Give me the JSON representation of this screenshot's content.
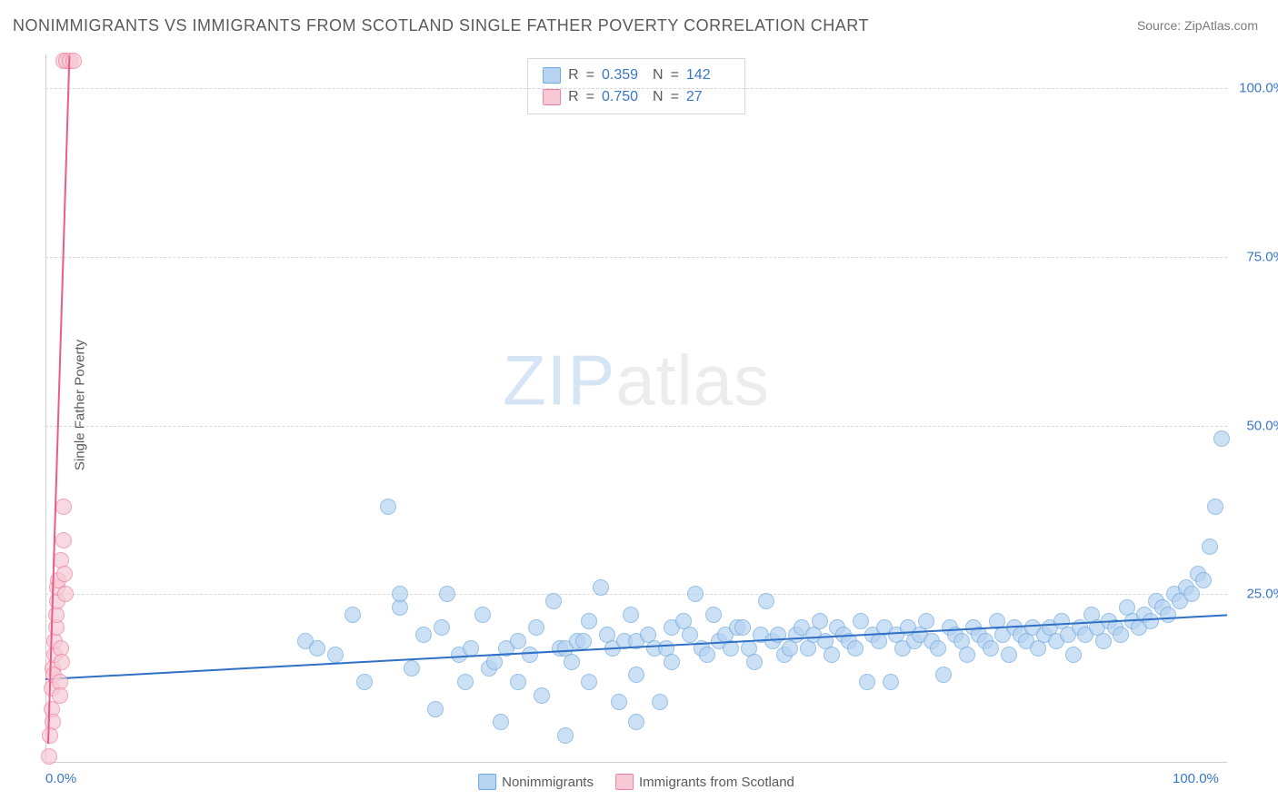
{
  "title": "NONIMMIGRANTS VS IMMIGRANTS FROM SCOTLAND SINGLE FATHER POVERTY CORRELATION CHART",
  "source_label": "Source:",
  "source_value": "ZipAtlas.com",
  "y_axis_label": "Single Father Poverty",
  "watermark": {
    "part1": "ZIP",
    "part2": "atlas"
  },
  "chart": {
    "type": "scatter",
    "background_color": "#ffffff",
    "grid_color": "#d8d8d8",
    "axis_color": "#cfcfcf",
    "xlim": [
      0,
      100
    ],
    "ylim": [
      0,
      105
    ],
    "yticks": [
      {
        "value": 25,
        "label": "25.0%"
      },
      {
        "value": 50,
        "label": "50.0%"
      },
      {
        "value": 75,
        "label": "75.0%"
      },
      {
        "value": 100,
        "label": "100.0%"
      }
    ],
    "xticks": [
      {
        "value": 0,
        "label": "0.0%",
        "align": "left"
      },
      {
        "value": 100,
        "label": "100.0%",
        "align": "right"
      }
    ],
    "marker_radius": 9,
    "marker_stroke_width": 1.5,
    "trend_line_width": 2.5,
    "series": [
      {
        "id": "nonimmigrants",
        "label": "Nonimmigrants",
        "fill_color": "#b6d3f0",
        "stroke_color": "#6ea8df",
        "fill_opacity": 0.7,
        "trend_color": "#2f6fc4",
        "trend": {
          "x1": 0,
          "y1": 12.5,
          "x2": 100,
          "y2": 22.0
        },
        "stats": {
          "R": "0.359",
          "N": "142"
        },
        "points": [
          [
            22,
            18
          ],
          [
            23,
            17
          ],
          [
            24.5,
            16
          ],
          [
            26,
            22
          ],
          [
            27,
            12
          ],
          [
            29,
            38
          ],
          [
            30,
            23
          ],
          [
            30,
            25
          ],
          [
            31,
            14
          ],
          [
            32,
            19
          ],
          [
            33,
            8
          ],
          [
            33.5,
            20
          ],
          [
            34,
            25
          ],
          [
            35,
            16
          ],
          [
            35.5,
            12
          ],
          [
            36,
            17
          ],
          [
            37,
            22
          ],
          [
            37.5,
            14
          ],
          [
            38,
            15
          ],
          [
            38.5,
            6
          ],
          [
            39,
            17
          ],
          [
            40,
            18
          ],
          [
            40,
            12
          ],
          [
            41,
            16
          ],
          [
            41.5,
            20
          ],
          [
            42,
            10
          ],
          [
            43,
            24
          ],
          [
            43.5,
            17
          ],
          [
            44,
            17
          ],
          [
            44.5,
            15
          ],
          [
            45,
            18
          ],
          [
            45.5,
            18
          ],
          [
            46,
            21
          ],
          [
            46,
            12
          ],
          [
            47,
            26
          ],
          [
            47.5,
            19
          ],
          [
            48,
            17
          ],
          [
            48.5,
            9
          ],
          [
            49,
            18
          ],
          [
            49.5,
            22
          ],
          [
            50,
            18
          ],
          [
            50,
            13
          ],
          [
            51,
            19
          ],
          [
            51.5,
            17
          ],
          [
            52,
            9
          ],
          [
            52.5,
            17
          ],
          [
            53,
            20
          ],
          [
            53,
            15
          ],
          [
            54,
            21
          ],
          [
            54.5,
            19
          ],
          [
            55,
            25
          ],
          [
            55.5,
            17
          ],
          [
            56,
            16
          ],
          [
            56.5,
            22
          ],
          [
            57,
            18
          ],
          [
            57.5,
            19
          ],
          [
            58,
            17
          ],
          [
            58.5,
            20
          ],
          [
            59,
            20
          ],
          [
            59.5,
            17
          ],
          [
            60,
            15
          ],
          [
            60.5,
            19
          ],
          [
            61,
            24
          ],
          [
            61.5,
            18
          ],
          [
            62,
            19
          ],
          [
            62.5,
            16
          ],
          [
            63,
            17
          ],
          [
            63.5,
            19
          ],
          [
            64,
            20
          ],
          [
            64.5,
            17
          ],
          [
            65,
            19
          ],
          [
            65.5,
            21
          ],
          [
            66,
            18
          ],
          [
            66.5,
            16
          ],
          [
            67,
            20
          ],
          [
            67.5,
            19
          ],
          [
            68,
            18
          ],
          [
            68.5,
            17
          ],
          [
            69,
            21
          ],
          [
            69.5,
            12
          ],
          [
            70,
            19
          ],
          [
            70.5,
            18
          ],
          [
            71,
            20
          ],
          [
            71.5,
            12
          ],
          [
            72,
            19
          ],
          [
            72.5,
            17
          ],
          [
            73,
            20
          ],
          [
            73.5,
            18
          ],
          [
            74,
            19
          ],
          [
            74.5,
            21
          ],
          [
            75,
            18
          ],
          [
            75.5,
            17
          ],
          [
            76,
            13
          ],
          [
            76.5,
            20
          ],
          [
            77,
            19
          ],
          [
            77.5,
            18
          ],
          [
            78,
            16
          ],
          [
            78.5,
            20
          ],
          [
            79,
            19
          ],
          [
            79.5,
            18
          ],
          [
            80,
            17
          ],
          [
            80.5,
            21
          ],
          [
            81,
            19
          ],
          [
            81.5,
            16
          ],
          [
            82,
            20
          ],
          [
            82.5,
            19
          ],
          [
            83,
            18
          ],
          [
            83.5,
            20
          ],
          [
            84,
            17
          ],
          [
            84.5,
            19
          ],
          [
            85,
            20
          ],
          [
            85.5,
            18
          ],
          [
            86,
            21
          ],
          [
            86.5,
            19
          ],
          [
            87,
            16
          ],
          [
            87.5,
            20
          ],
          [
            88,
            19
          ],
          [
            88.5,
            22
          ],
          [
            89,
            20
          ],
          [
            89.5,
            18
          ],
          [
            90,
            21
          ],
          [
            90.5,
            20
          ],
          [
            91,
            19
          ],
          [
            91.5,
            23
          ],
          [
            92,
            21
          ],
          [
            92.5,
            20
          ],
          [
            93,
            22
          ],
          [
            93.5,
            21
          ],
          [
            94,
            24
          ],
          [
            94.5,
            23
          ],
          [
            95,
            22
          ],
          [
            95.5,
            25
          ],
          [
            96,
            24
          ],
          [
            96.5,
            26
          ],
          [
            97,
            25
          ],
          [
            97.5,
            28
          ],
          [
            98,
            27
          ],
          [
            98.5,
            32
          ],
          [
            99,
            38
          ],
          [
            99.5,
            48
          ],
          [
            44,
            4
          ],
          [
            50,
            6
          ]
        ]
      },
      {
        "id": "immigrants",
        "label": "Immigrants from Scotland",
        "fill_color": "#f7c9d5",
        "stroke_color": "#ed7e9c",
        "fill_opacity": 0.7,
        "trend_color": "#ed5a87",
        "trend": {
          "x1": 0.2,
          "y1": 3,
          "x2": 2.0,
          "y2": 105
        },
        "stats": {
          "R": "0.750",
          "N": "27"
        },
        "points": [
          [
            0.3,
            1
          ],
          [
            0.5,
            8
          ],
          [
            0.5,
            11
          ],
          [
            0.6,
            14
          ],
          [
            0.7,
            13
          ],
          [
            0.8,
            16
          ],
          [
            0.8,
            18
          ],
          [
            0.9,
            20
          ],
          [
            0.9,
            22
          ],
          [
            1.0,
            24
          ],
          [
            1.0,
            26
          ],
          [
            1.1,
            27
          ],
          [
            1.2,
            12
          ],
          [
            1.2,
            10
          ],
          [
            1.3,
            17
          ],
          [
            1.3,
            30
          ],
          [
            1.4,
            15
          ],
          [
            1.5,
            38
          ],
          [
            1.5,
            33
          ],
          [
            1.6,
            28
          ],
          [
            1.7,
            25
          ],
          [
            0.6,
            6
          ],
          [
            0.4,
            4
          ],
          [
            1.5,
            104
          ],
          [
            1.8,
            104
          ],
          [
            2.1,
            104
          ],
          [
            2.4,
            104
          ]
        ]
      }
    ]
  },
  "legend_top": {
    "border_color": "#d6d6d6",
    "label_R": "R",
    "label_N": "N",
    "label_eq": "="
  },
  "colors": {
    "title_text": "#5a5a5a",
    "source_text": "#7a7a7a",
    "tick_text": "#3a76c8",
    "stat_value": "#3a76c8"
  }
}
